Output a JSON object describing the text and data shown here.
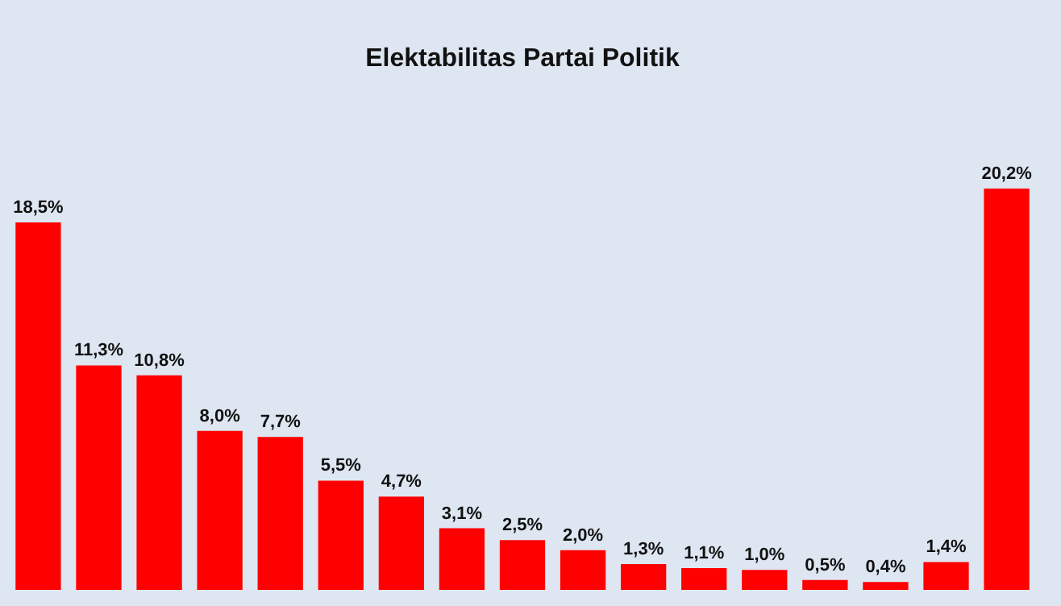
{
  "chart_data": {
    "type": "bar",
    "title": "Elektabilitas Partai Politik",
    "categories": [
      null,
      null,
      null,
      null,
      null,
      null,
      null,
      null,
      null,
      null,
      null,
      null,
      null,
      null,
      null,
      null,
      null
    ],
    "values": [
      18.5,
      11.3,
      10.8,
      8.0,
      7.7,
      5.5,
      4.7,
      3.1,
      2.5,
      2.0,
      1.3,
      1.1,
      1.0,
      0.5,
      0.4,
      1.4,
      20.2
    ],
    "value_labels": [
      "18,5%",
      "11,3%",
      "10,8%",
      "8,0%",
      "7,7%",
      "5,5%",
      "4,7%",
      "3,1%",
      "2,5%",
      "2,0%",
      "1,3%",
      "1,1%",
      "1,0%",
      "0,5%",
      "0,4%",
      "1,4%",
      "20,2%"
    ],
    "color": "#ff0000"
  }
}
